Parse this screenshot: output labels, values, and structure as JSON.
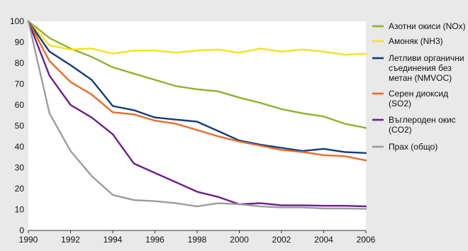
{
  "chart_data": {
    "type": "line",
    "x": [
      1990,
      1991,
      1992,
      1993,
      1994,
      1995,
      1996,
      1997,
      1998,
      1999,
      2000,
      2001,
      2002,
      2003,
      2004,
      2005,
      2006
    ],
    "xlim": [
      1990,
      2006
    ],
    "ylim": [
      0,
      100
    ],
    "xticks": [
      "1990",
      "1992",
      "1994",
      "1996",
      "1998",
      "2000",
      "2002",
      "2004",
      "2006"
    ],
    "yticks": [
      "0",
      "10",
      "20",
      "30",
      "40",
      "50",
      "60",
      "70",
      "80",
      "90",
      "100"
    ],
    "grid": false,
    "legend_position": "right",
    "series": [
      {
        "name": "Азотни окиси (NOx)",
        "color": "#8db32a",
        "values": [
          100,
          92,
          87,
          83,
          78,
          75,
          72,
          69,
          67.5,
          66.5,
          63.5,
          61,
          58,
          56,
          54.5,
          51,
          49
        ]
      },
      {
        "name": "Амоняк (NH3)",
        "color": "#f5e11e",
        "values": [
          100,
          88.5,
          86.5,
          87,
          84.5,
          86,
          86,
          85,
          86,
          86.5,
          85,
          87,
          85.5,
          86.5,
          85.5,
          84,
          84.5
        ]
      },
      {
        "name": "Летливи органични съединения без метан (NMVOC)",
        "color": "#0f3d7a",
        "values": [
          100,
          85.5,
          79,
          72,
          59.5,
          57.5,
          54,
          53,
          52,
          47.5,
          43,
          41,
          39.5,
          38,
          39,
          37.5,
          37
        ]
      },
      {
        "name": "Серен диоксид (SO2)",
        "color": "#ec6a2a",
        "values": [
          100,
          81,
          71,
          65,
          56.5,
          55.5,
          52.5,
          51,
          48,
          45,
          42.5,
          40.5,
          38.5,
          37.5,
          36,
          35.5,
          33.5
        ]
      },
      {
        "name": "Въглероден окис (CO2)",
        "color": "#6b1f8c",
        "values": [
          100,
          74,
          60,
          54,
          46,
          32,
          27.5,
          23,
          18.5,
          16,
          12.5,
          13,
          12,
          12,
          11.8,
          11.8,
          11.5
        ]
      },
      {
        "name": "Прах (общо)",
        "color": "#9c9c9c",
        "values": [
          100,
          56,
          38,
          26,
          17,
          14.5,
          14,
          13,
          11.5,
          13,
          12.5,
          11.5,
          11,
          11,
          10.5,
          10.5,
          10.3
        ]
      }
    ],
    "legend_lines": [
      [
        "Азотни окиси (NOx)"
      ],
      [
        "Амоняк (NH3)"
      ],
      [
        "Летливи органични",
        "съединения без",
        "метан (NMVOC)"
      ],
      [
        "Серен диоксид",
        "(SO2)"
      ],
      [
        "Въглероден окис",
        "(CO2)"
      ],
      [
        "Прах (общо)"
      ]
    ]
  }
}
